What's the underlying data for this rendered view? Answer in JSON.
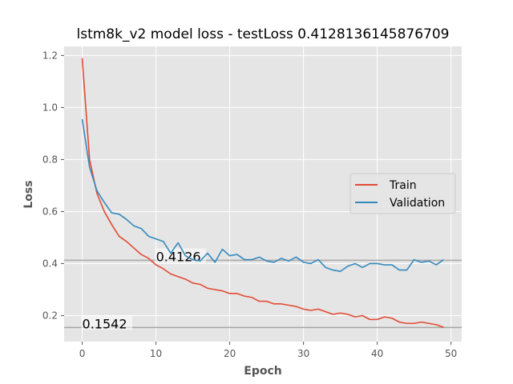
{
  "chart_data": {
    "type": "line",
    "title": "lstm8k_v2 model loss - testLoss 0.4128136145876709",
    "xlabel": "Epoch",
    "ylabel": "Loss",
    "xlim": [
      -2.45,
      51.45
    ],
    "ylim": [
      0.1,
      1.235
    ],
    "xticks": [
      0,
      10,
      20,
      30,
      40,
      50
    ],
    "yticks": [
      0.2,
      0.4,
      0.6,
      0.8,
      1.0,
      1.2
    ],
    "grid": true,
    "legend_position": "center-right",
    "x": [
      0,
      1,
      2,
      3,
      4,
      5,
      6,
      7,
      8,
      9,
      10,
      11,
      12,
      13,
      14,
      15,
      16,
      17,
      18,
      19,
      20,
      21,
      22,
      23,
      24,
      25,
      26,
      27,
      28,
      29,
      30,
      31,
      32,
      33,
      34,
      35,
      36,
      37,
      38,
      39,
      40,
      41,
      42,
      43,
      44,
      45,
      46,
      47,
      48,
      49
    ],
    "series": [
      {
        "name": "Train",
        "color": "#e24a33",
        "values": [
          1.19,
          0.8,
          0.67,
          0.6,
          0.55,
          0.505,
          0.485,
          0.46,
          0.435,
          0.42,
          0.395,
          0.38,
          0.36,
          0.35,
          0.34,
          0.325,
          0.32,
          0.305,
          0.3,
          0.295,
          0.285,
          0.285,
          0.275,
          0.27,
          0.255,
          0.255,
          0.245,
          0.245,
          0.24,
          0.235,
          0.225,
          0.22,
          0.225,
          0.215,
          0.205,
          0.21,
          0.205,
          0.195,
          0.2,
          0.185,
          0.185,
          0.195,
          0.19,
          0.175,
          0.17,
          0.17,
          0.175,
          0.17,
          0.165,
          0.155
        ]
      },
      {
        "name": "Validation",
        "color": "#348abd",
        "values": [
          0.955,
          0.77,
          0.68,
          0.635,
          0.595,
          0.59,
          0.57,
          0.545,
          0.535,
          0.505,
          0.495,
          0.485,
          0.44,
          0.48,
          0.43,
          0.415,
          0.41,
          0.44,
          0.405,
          0.455,
          0.43,
          0.435,
          0.415,
          0.415,
          0.425,
          0.41,
          0.405,
          0.42,
          0.41,
          0.425,
          0.405,
          0.4,
          0.415,
          0.385,
          0.375,
          0.37,
          0.39,
          0.4,
          0.385,
          0.4,
          0.4,
          0.395,
          0.395,
          0.375,
          0.375,
          0.415,
          0.405,
          0.41,
          0.395,
          0.415
        ]
      }
    ],
    "hlines": [
      {
        "y": 0.4126,
        "label": "0.4126",
        "label_x": 10
      },
      {
        "y": 0.1542,
        "label": "0.1542",
        "label_x": 0
      }
    ]
  }
}
